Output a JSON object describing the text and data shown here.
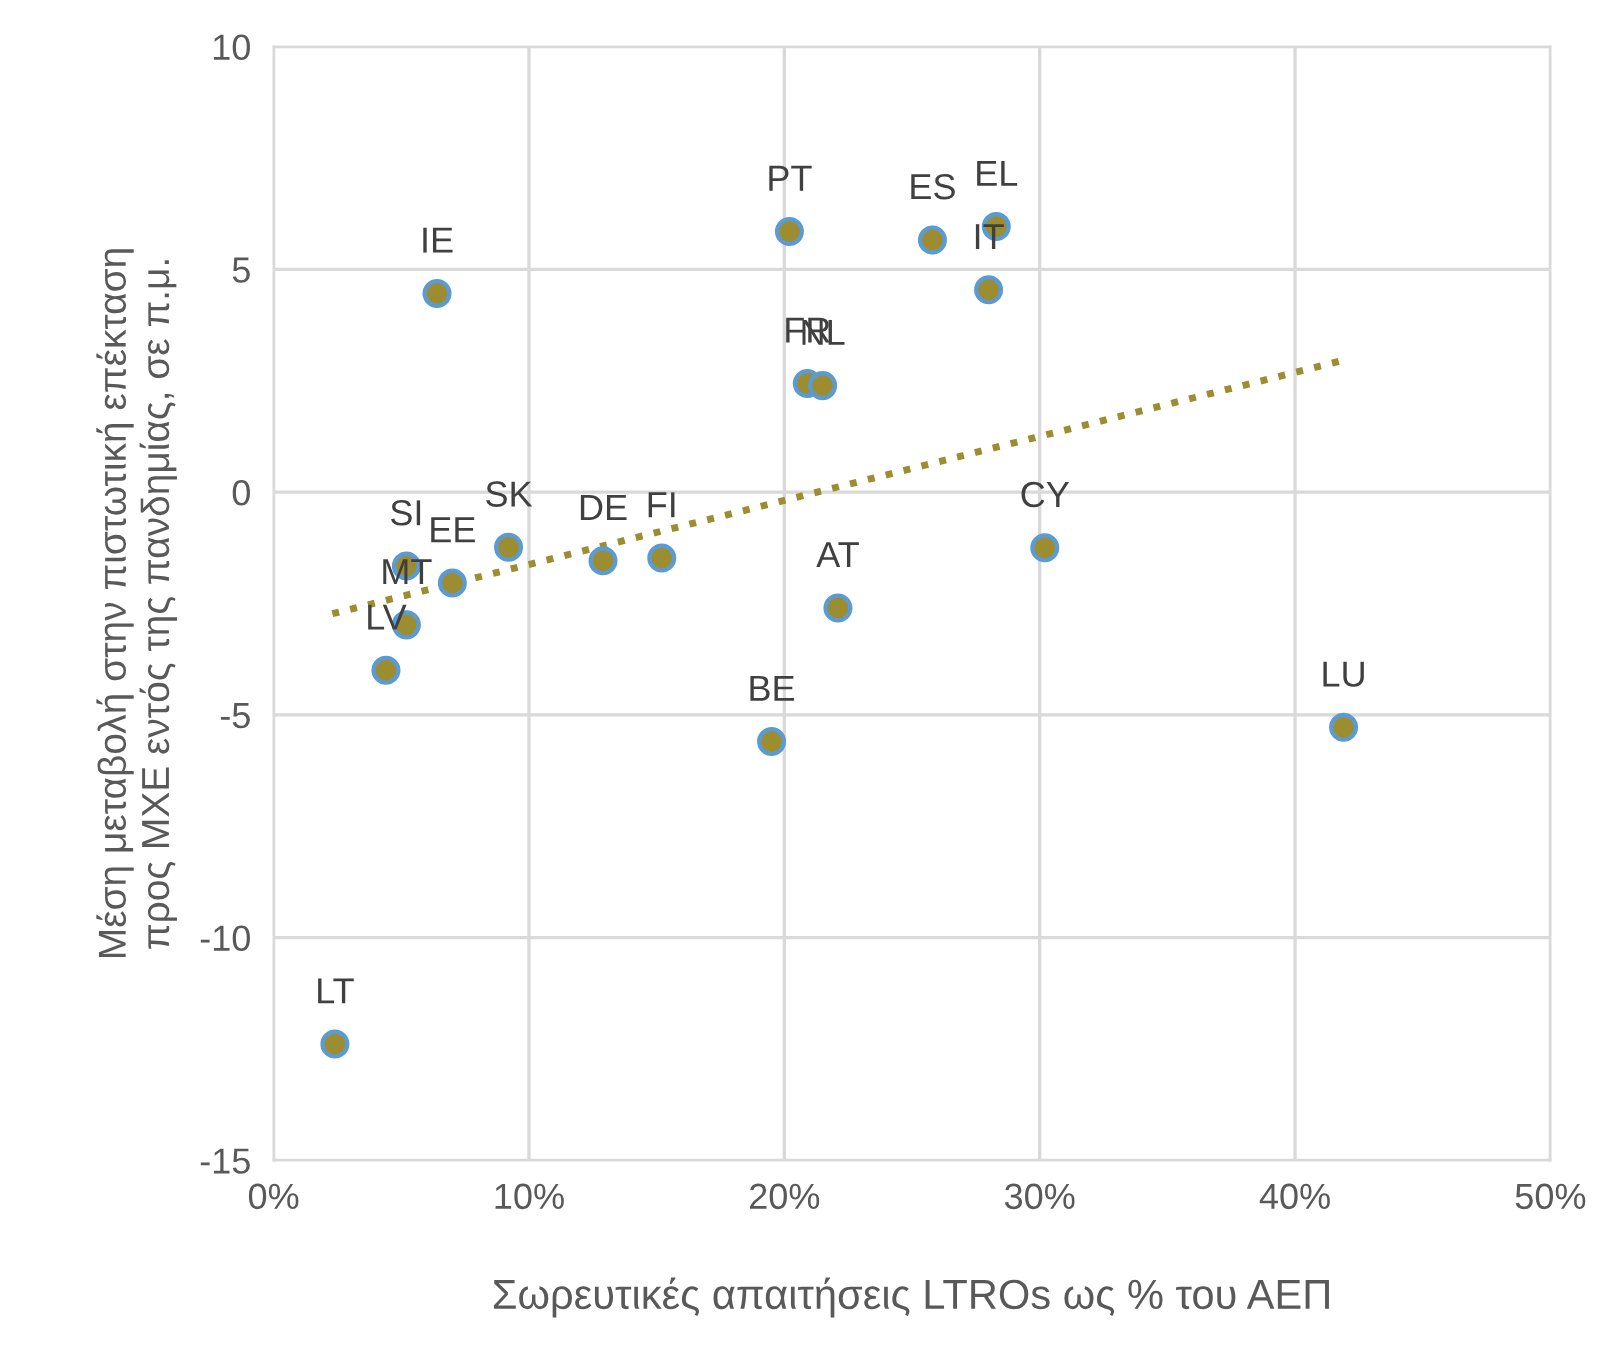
{
  "chart_data": {
    "type": "scatter",
    "xlabel": "Σωρευτικές απαιτήσεις LTROs ως % του ΑΕΠ",
    "ylabel": "Μέση μεταβολή στην πιστωτική επέκταση\nπρος ΜΧΕ εντός της πανδημίας, σε π.μ.",
    "series": [
      {
        "color": "#9c8d30",
        "marker": "circle",
        "x": [
          20.2,
          25.8,
          28.3,
          28.0,
          6.4,
          20.9,
          21.5,
          9.2,
          5.2,
          7.0,
          5.2,
          4.4,
          12.9,
          15.2,
          22.1,
          19.5,
          30.2,
          41.9,
          2.4
        ],
        "values": [
          5.85,
          5.66,
          5.96,
          4.54,
          4.46,
          2.44,
          2.39,
          -1.24,
          -1.66,
          -2.04,
          -2.98,
          -4.0,
          -1.54,
          -1.48,
          -2.6,
          -5.6,
          -1.25,
          -5.28,
          -12.39
        ]
      },
      {
        "type": "line",
        "color": "#9c8d30",
        "line_style": "dotted",
        "x": [
          2.3,
          41.9
        ],
        "values": [
          -2.73,
          2.96
        ]
      }
    ],
    "annotations": [
      {
        "text": "PT",
        "x": 20.2,
        "y": 5.85
      },
      {
        "text": "ES",
        "x": 25.8,
        "y": 5.66
      },
      {
        "text": "EL",
        "x": 28.3,
        "y": 5.96
      },
      {
        "text": "IT",
        "x": 28.0,
        "y": 4.54
      },
      {
        "text": "IE",
        "x": 6.4,
        "y": 4.46
      },
      {
        "text": "FR",
        "x": 20.9,
        "y": 2.44
      },
      {
        "text": "NL",
        "x": 21.5,
        "y": 2.39
      },
      {
        "text": "SK",
        "x": 9.2,
        "y": -1.24
      },
      {
        "text": "SI",
        "x": 5.2,
        "y": -1.66
      },
      {
        "text": "EE",
        "x": 7.0,
        "y": -2.04
      },
      {
        "text": "MT",
        "x": 5.2,
        "y": -2.98
      },
      {
        "text": "LV",
        "x": 4.4,
        "y": -4.0
      },
      {
        "text": "DE",
        "x": 12.9,
        "y": -1.54
      },
      {
        "text": "FI",
        "x": 15.2,
        "y": -1.48
      },
      {
        "text": "AT",
        "x": 22.1,
        "y": -2.6
      },
      {
        "text": "BE",
        "x": 19.5,
        "y": -5.6
      },
      {
        "text": "CY",
        "x": 30.2,
        "y": -1.25
      },
      {
        "text": "LU",
        "x": 41.9,
        "y": -5.28
      },
      {
        "text": "LT",
        "x": 2.4,
        "y": -12.39
      }
    ],
    "xlim": [
      0,
      50
    ],
    "xticks": [
      {
        "value": 0,
        "label": "0%"
      },
      {
        "value": 10,
        "label": "10%"
      },
      {
        "value": 20,
        "label": "20%"
      },
      {
        "value": 30,
        "label": "30%"
      },
      {
        "value": 40,
        "label": "40%"
      },
      {
        "value": 50,
        "label": "50%"
      }
    ],
    "ylim": [
      -15,
      10
    ],
    "yticks": [
      -15,
      -10,
      -5,
      0,
      5,
      10
    ],
    "grid": true,
    "legend": false
  }
}
